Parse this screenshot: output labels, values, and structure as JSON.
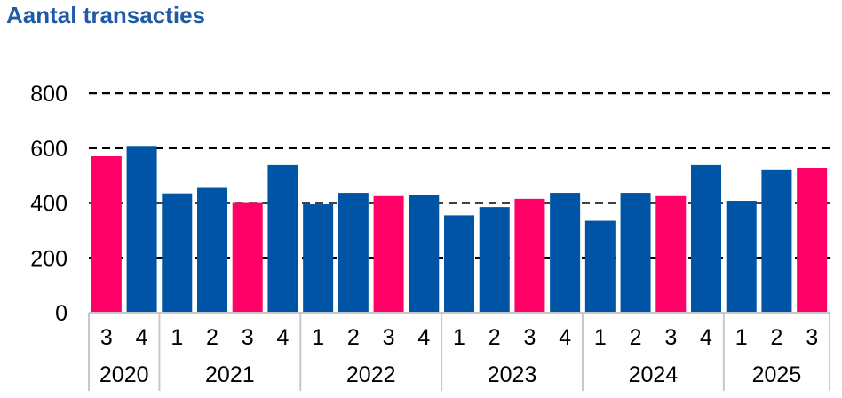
{
  "title": "Aantal transacties",
  "chart_data": {
    "type": "bar",
    "title": "Aantal transacties",
    "xlabel": "",
    "ylabel": "",
    "ylim": [
      0,
      800
    ],
    "yticks": [
      "0",
      "200",
      "400",
      "600",
      "800"
    ],
    "grid": "dashed horizontal",
    "categories": [
      "3",
      "4",
      "1",
      "2",
      "3",
      "4",
      "1",
      "2",
      "3",
      "4",
      "1",
      "2",
      "3",
      "4",
      "1",
      "2",
      "3",
      "4",
      "1",
      "2",
      "3"
    ],
    "years": [
      {
        "label": "2020",
        "count": 2
      },
      {
        "label": "2021",
        "count": 4
      },
      {
        "label": "2022",
        "count": 4
      },
      {
        "label": "2023",
        "count": 4
      },
      {
        "label": "2024",
        "count": 4
      },
      {
        "label": "2025",
        "count": 3
      }
    ],
    "values": [
      570,
      608,
      435,
      455,
      403,
      538,
      395,
      437,
      425,
      428,
      355,
      385,
      415,
      437,
      335,
      437,
      425,
      538,
      408,
      522,
      528
    ],
    "colors": {
      "highlight": "#ff0066",
      "default": "#0054a6"
    },
    "highlight_quarter": "3"
  }
}
